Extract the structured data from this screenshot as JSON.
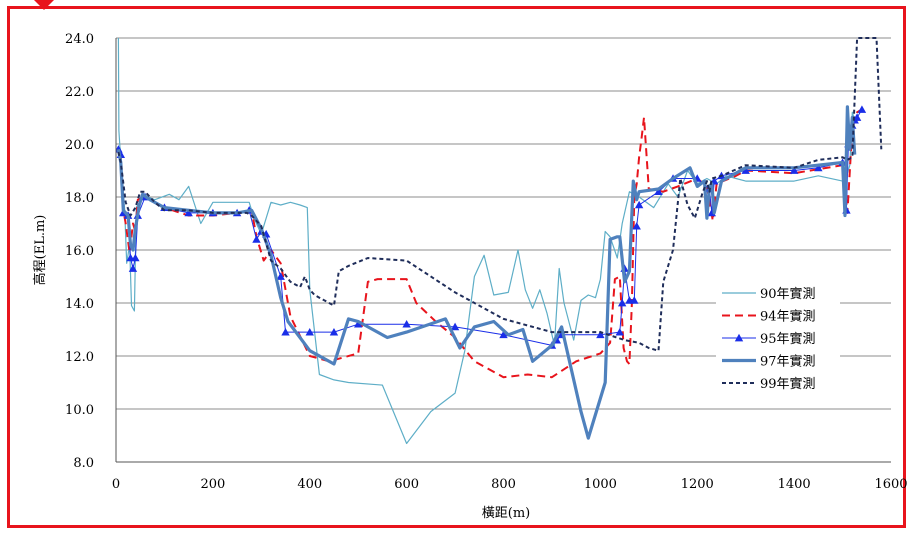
{
  "chart_data": {
    "type": "line",
    "title": "",
    "xlabel": "橫距(m)",
    "ylabel": "高程(EL.m)",
    "xlim": [
      0,
      1600
    ],
    "ylim": [
      8.0,
      24.0
    ],
    "xticks": [
      "0",
      "200",
      "400",
      "600",
      "800",
      "1000",
      "1200",
      "1400",
      "1600"
    ],
    "yticks": [
      "8.0",
      "10.0",
      "12.0",
      "14.0",
      "16.0",
      "18.0",
      "20.0",
      "22.0",
      "24.0"
    ],
    "grid": "horizontal",
    "legend_position": "right",
    "series": [
      {
        "name": "90年實測",
        "color": "#5eaec7",
        "dash": "solid",
        "marker": "none",
        "x": [
          5,
          6,
          8,
          10,
          12,
          18,
          22,
          28,
          32,
          38,
          42,
          48,
          55,
          65,
          80,
          110,
          130,
          150,
          175,
          200,
          240,
          275,
          285,
          300,
          320,
          340,
          360,
          380,
          395,
          400,
          420,
          450,
          480,
          550,
          600,
          650,
          700,
          720,
          740,
          760,
          780,
          810,
          830,
          845,
          860,
          875,
          890,
          905,
          915,
          925,
          945,
          960,
          975,
          990,
          1000,
          1010,
          1020,
          1035,
          1045,
          1060,
          1080,
          1110,
          1140,
          1160,
          1180,
          1200,
          1220,
          1240,
          1260,
          1280,
          1300,
          1400,
          1450,
          1500,
          1505,
          1510,
          1515,
          1520,
          1525,
          1530
        ],
        "y": [
          24.0,
          20.5,
          19.9,
          19.7,
          18.9,
          17.5,
          15.5,
          16.2,
          13.9,
          13.7,
          17.6,
          17.8,
          18.0,
          18.0,
          17.9,
          18.1,
          17.9,
          18.4,
          17.0,
          17.8,
          17.8,
          17.8,
          17.2,
          16.6,
          17.8,
          17.7,
          17.8,
          17.7,
          17.6,
          14.5,
          11.3,
          11.1,
          11.0,
          10.9,
          8.7,
          9.9,
          10.6,
          12.2,
          15.0,
          15.8,
          14.3,
          14.4,
          16.0,
          14.5,
          13.8,
          14.5,
          13.6,
          12.4,
          15.3,
          14.0,
          12.6,
          14.1,
          14.3,
          14.2,
          14.9,
          16.7,
          16.5,
          15.7,
          17.0,
          18.2,
          18.0,
          17.6,
          18.5,
          18.0,
          19.0,
          18.5,
          18.7,
          18.5,
          18.8,
          18.7,
          18.6,
          18.6,
          18.8,
          18.6,
          17.9,
          18.9,
          19.2,
          21.2,
          20.9,
          21.1
        ]
      },
      {
        "name": "94年實測",
        "color": "#e8141c",
        "dash": "long-dash",
        "marker": "none",
        "x": [
          5,
          10,
          15,
          20,
          28,
          35,
          40,
          45,
          60,
          100,
          150,
          200,
          250,
          280,
          290,
          305,
          320,
          340,
          360,
          400,
          440,
          500,
          520,
          540,
          600,
          620,
          660,
          700,
          740,
          800,
          850,
          900,
          950,
          1000,
          1020,
          1030,
          1040,
          1048,
          1055,
          1060,
          1065,
          1070,
          1075,
          1080,
          1085,
          1090,
          1100,
          1130,
          1160,
          1200,
          1220,
          1232,
          1240,
          1280,
          1300,
          1400,
          1500,
          1510,
          1520,
          1530,
          1540
        ],
        "y": [
          19.7,
          19.5,
          17.5,
          17.0,
          15.9,
          17.0,
          16.7,
          17.9,
          18.0,
          17.6,
          17.3,
          17.3,
          17.4,
          17.5,
          16.5,
          15.6,
          16.0,
          15.5,
          13.5,
          12.0,
          11.8,
          12.1,
          14.8,
          14.9,
          14.9,
          14.0,
          13.3,
          12.7,
          11.8,
          11.2,
          11.3,
          11.2,
          11.8,
          12.1,
          12.5,
          14.9,
          15.0,
          12.3,
          11.8,
          11.7,
          14.0,
          18.0,
          18.5,
          19.5,
          20.2,
          21.0,
          18.3,
          18.2,
          18.4,
          18.7,
          18.4,
          17.1,
          18.5,
          18.8,
          19.0,
          18.9,
          19.2,
          17.4,
          20.6,
          21.2,
          21.3
        ]
      },
      {
        "name": "95年實測",
        "color": "#1a2ee8",
        "dash": "solid",
        "marker": "triangle",
        "x": [
          5,
          10,
          15,
          25,
          30,
          35,
          40,
          45,
          60,
          100,
          150,
          200,
          250,
          275,
          290,
          300,
          310,
          340,
          350,
          400,
          450,
          500,
          600,
          700,
          800,
          900,
          910,
          920,
          1000,
          1040,
          1045,
          1050,
          1060,
          1070,
          1075,
          1080,
          1120,
          1150,
          1200,
          1225,
          1230,
          1235,
          1250,
          1300,
          1400,
          1450,
          1500,
          1508,
          1512,
          1516,
          1520,
          1525,
          1530,
          1540
        ],
        "y": [
          19.8,
          19.6,
          17.4,
          17.3,
          15.7,
          15.3,
          15.7,
          17.3,
          18.0,
          17.6,
          17.4,
          17.4,
          17.4,
          17.5,
          16.4,
          16.7,
          16.6,
          15.0,
          12.9,
          12.9,
          12.9,
          13.2,
          13.2,
          13.1,
          12.8,
          12.4,
          12.6,
          12.8,
          12.8,
          12.9,
          14.0,
          15.3,
          14.1,
          14.1,
          16.9,
          17.7,
          18.2,
          18.7,
          18.7,
          18.3,
          17.4,
          18.6,
          18.8,
          19.0,
          19.0,
          19.1,
          19.3,
          17.5,
          20.0,
          20.4,
          20.7,
          20.9,
          21.0,
          21.3
        ]
      },
      {
        "name": "97年實測",
        "color": "#4f81bd",
        "dash": "thick-solid",
        "marker": "none",
        "x": [
          5,
          10,
          15,
          25,
          30,
          35,
          40,
          48,
          55,
          70,
          100,
          150,
          200,
          250,
          280,
          300,
          320,
          340,
          355,
          400,
          450,
          480,
          500,
          560,
          600,
          680,
          710,
          740,
          780,
          810,
          840,
          860,
          900,
          920,
          960,
          975,
          1010,
          1020,
          1035,
          1040,
          1050,
          1060,
          1068,
          1075,
          1080,
          1120,
          1150,
          1185,
          1200,
          1215,
          1220,
          1225,
          1230,
          1235,
          1250,
          1300,
          1400,
          1500,
          1505,
          1510,
          1515,
          1520,
          1525
        ],
        "y": [
          19.8,
          19.3,
          17.5,
          17.3,
          16.2,
          16.0,
          16.8,
          17.7,
          18.1,
          17.9,
          17.6,
          17.5,
          17.4,
          17.4,
          17.5,
          16.8,
          15.8,
          14.2,
          13.3,
          12.2,
          11.7,
          13.4,
          13.3,
          12.7,
          12.9,
          13.4,
          12.3,
          13.1,
          13.3,
          12.8,
          13.0,
          11.8,
          12.4,
          13.1,
          9.9,
          8.9,
          11.0,
          16.4,
          16.5,
          16.5,
          14.8,
          15.2,
          18.6,
          17.9,
          18.2,
          18.3,
          18.7,
          19.1,
          18.4,
          18.6,
          17.2,
          18.4,
          18.5,
          17.4,
          18.6,
          19.1,
          19.1,
          19.3,
          17.3,
          21.4,
          19.8,
          21.0,
          19.6
        ]
      },
      {
        "name": "99年實測",
        "color": "#1f2d5a",
        "dash": "short-dash",
        "marker": "none",
        "x": [
          5,
          10,
          20,
          30,
          40,
          50,
          60,
          80,
          100,
          150,
          200,
          250,
          270,
          280,
          300,
          320,
          340,
          360,
          380,
          390,
          400,
          410,
          420,
          450,
          460,
          480,
          520,
          600,
          700,
          800,
          900,
          1000,
          1050,
          1080,
          1100,
          1120,
          1130,
          1150,
          1165,
          1180,
          1195,
          1210,
          1220,
          1225,
          1230,
          1250,
          1300,
          1400,
          1450,
          1500,
          1510,
          1520,
          1530,
          1540,
          1560,
          1570,
          1580
        ],
        "y": [
          19.7,
          19.3,
          17.8,
          17.3,
          17.6,
          18.2,
          18.2,
          17.8,
          17.5,
          17.5,
          17.4,
          17.4,
          17.4,
          17.3,
          16.9,
          15.6,
          15.3,
          14.8,
          14.6,
          15.0,
          14.5,
          14.3,
          14.2,
          13.9,
          15.2,
          15.4,
          15.7,
          15.6,
          14.4,
          13.4,
          12.9,
          12.9,
          12.6,
          12.5,
          12.3,
          12.2,
          14.8,
          16.0,
          18.7,
          17.7,
          17.2,
          18.1,
          18.6,
          18.2,
          18.7,
          18.8,
          19.2,
          19.1,
          19.4,
          19.5,
          19.4,
          19.5,
          24.0,
          24.0,
          24.0,
          24.0,
          19.8
        ]
      }
    ]
  }
}
